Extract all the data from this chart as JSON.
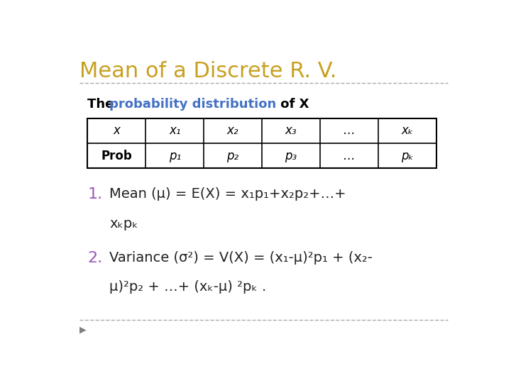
{
  "title": "Mean of a Discrete R. V.",
  "title_color": "#C8A020",
  "background_color": "#FFFFFF",
  "table_headers": [
    "x",
    "x₁",
    "x₂",
    "x₃",
    "…",
    "xₖ"
  ],
  "table_row2": [
    "Prob",
    "p₁",
    "p₂",
    "p₃",
    "…",
    "pₖ"
  ],
  "item1_color": "#9B59B6",
  "item1_line1": "Mean (μ) = E(X) = x₁p₁+x₂p₂+…+",
  "item1_line2": "xₖpₖ",
  "item2_color": "#9B59B6",
  "item2_line1": "Variance (σ²) = V(X) = (x₁-μ)²p₁ + (x₂-",
  "item2_line2": "μ)²p₂ + …+ (xₖ-μ) ²pₖ .",
  "divider_color": "#AAAAAA",
  "text_color": "#222222",
  "blue_color": "#4472C4"
}
